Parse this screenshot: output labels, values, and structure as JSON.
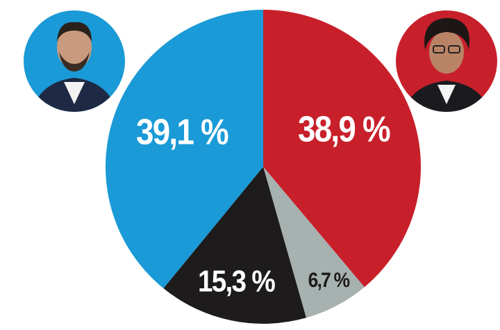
{
  "chart_data": {
    "type": "pie",
    "values": [
      38.9,
      6.7,
      15.3,
      39.1
    ],
    "value_labels": [
      "38,9 %",
      "6,7 %",
      "15,3 %",
      "39,1 %"
    ],
    "colors": [
      "#c8202b",
      "#a7b1af",
      "#1d1b1c",
      "#1a9ad6"
    ]
  }
}
